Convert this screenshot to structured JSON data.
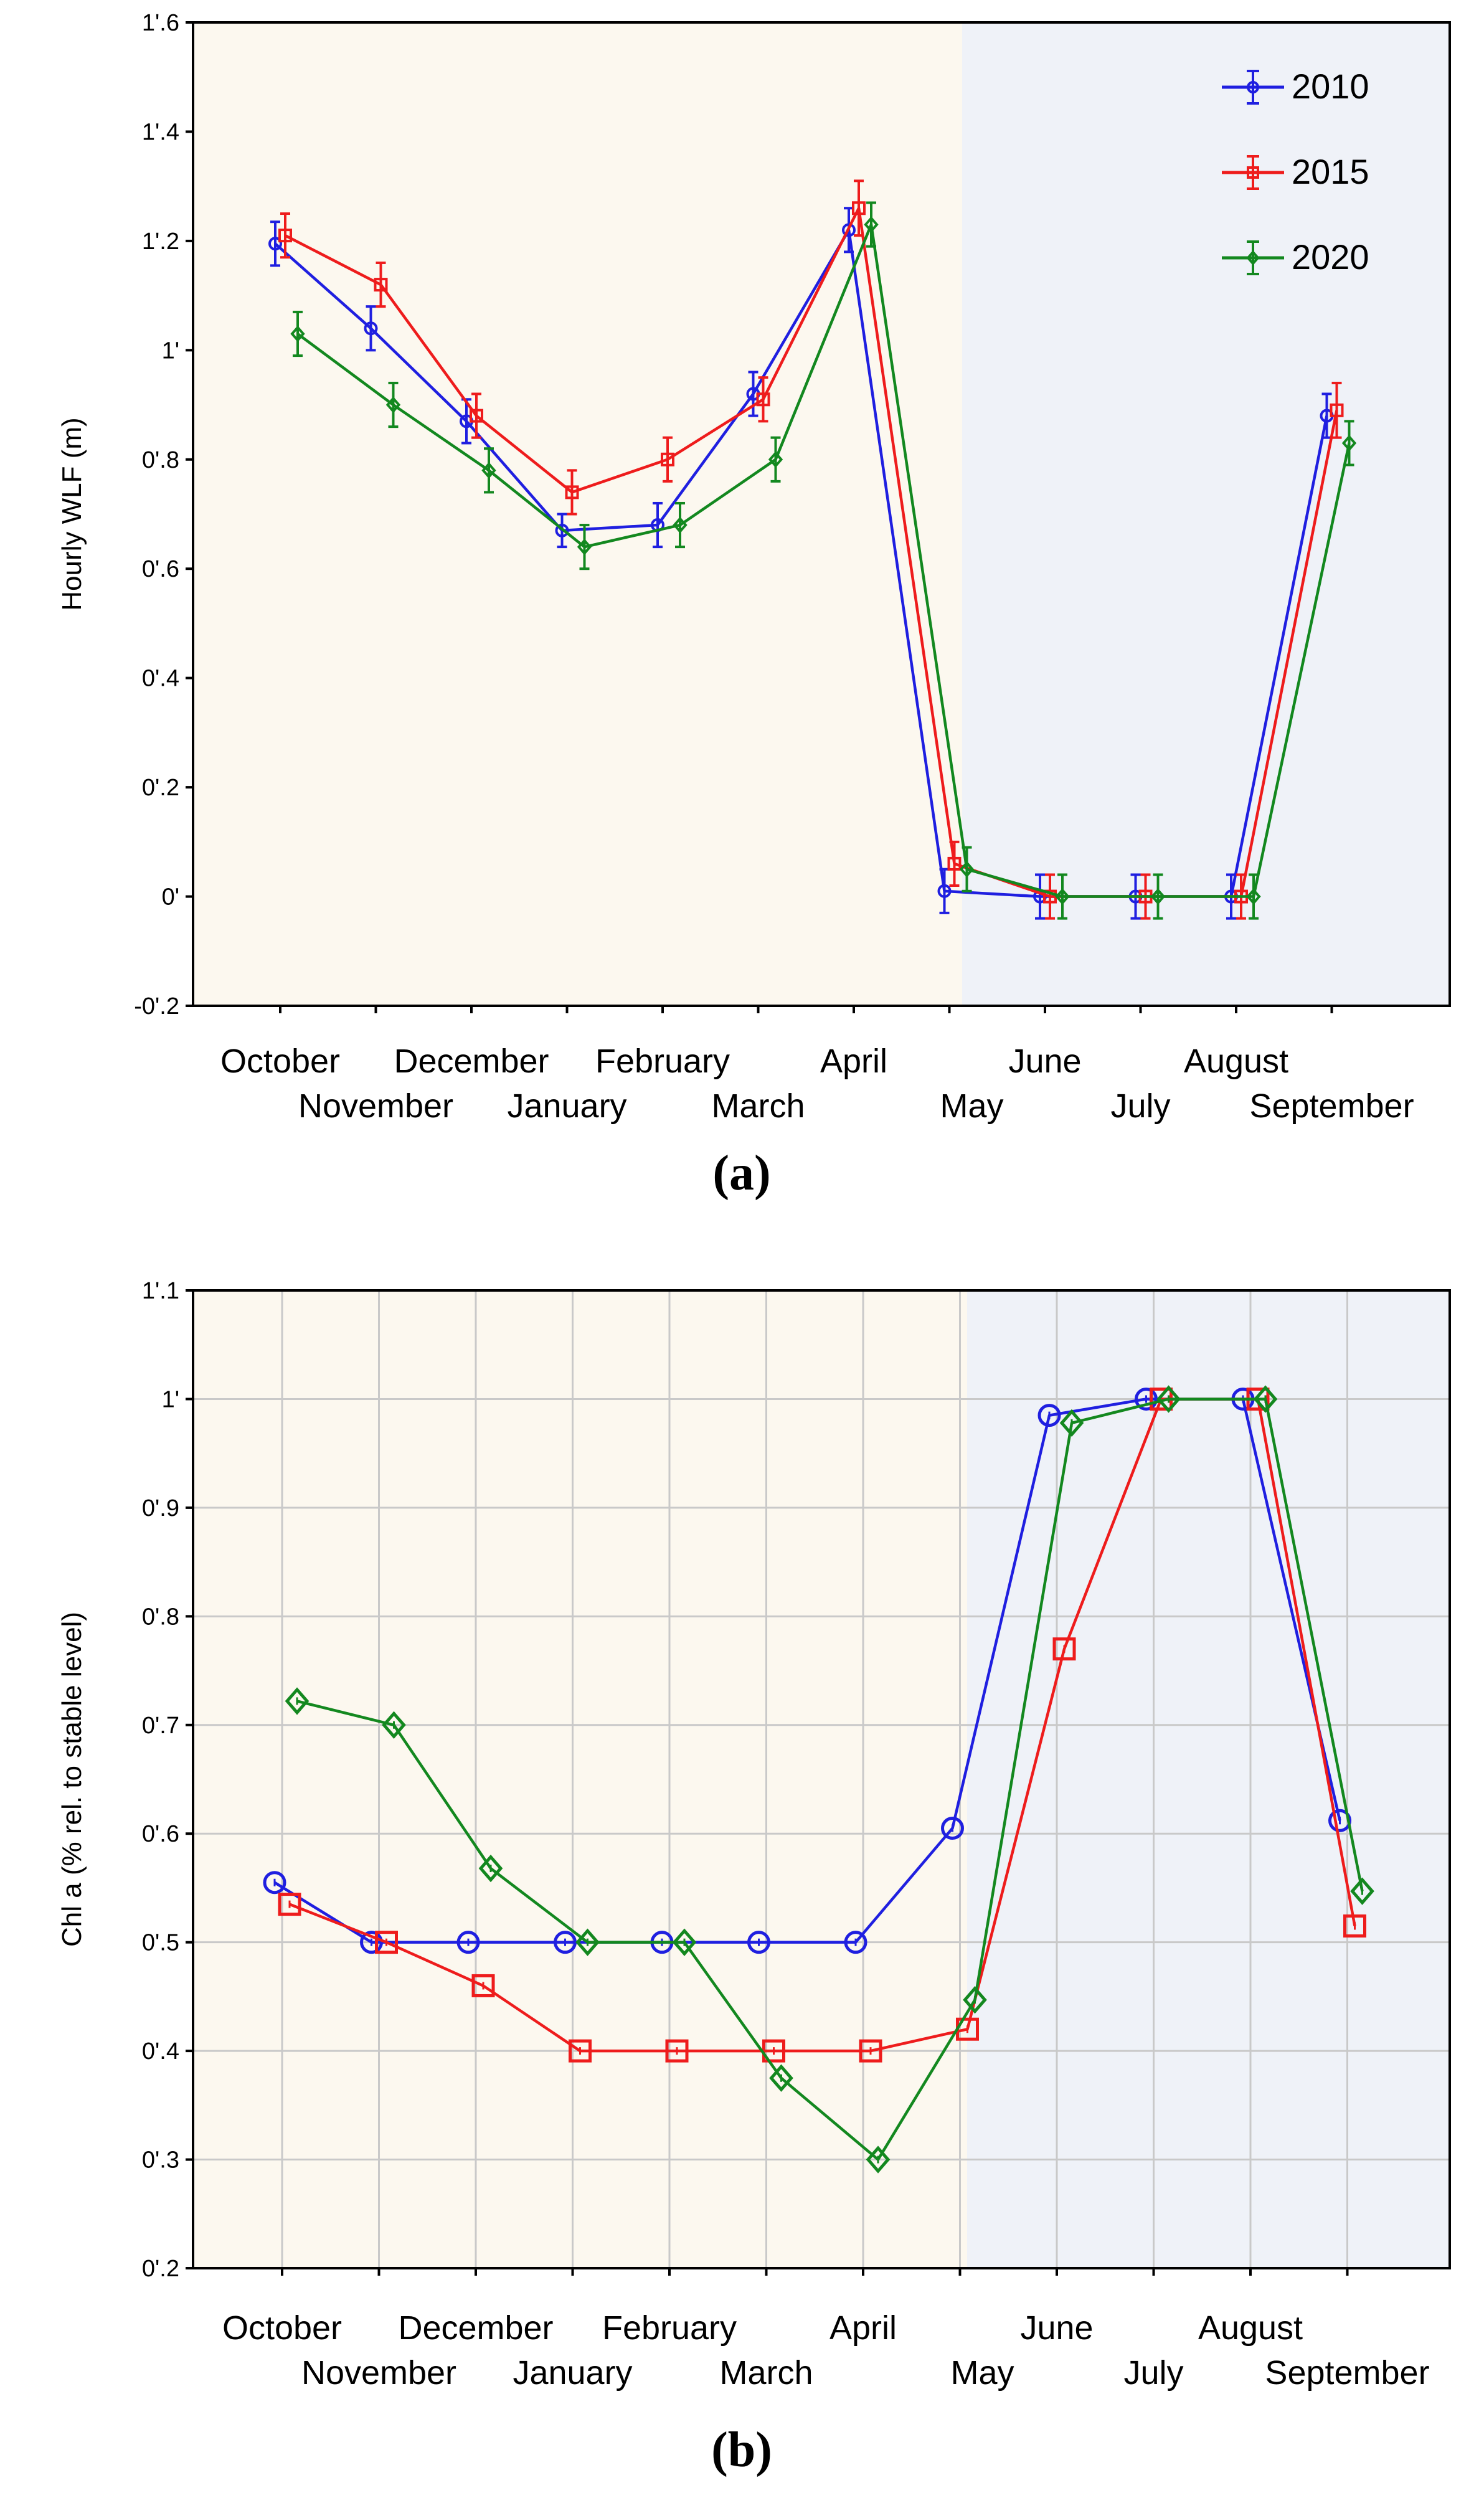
{
  "colors": {
    "series_2010": "#1f1fe0",
    "series_2015": "#ee1c1c",
    "series_2020": "#13881f",
    "bg_left": "#fcf8ef",
    "bg_right": "#eff2f8",
    "grid": "#c9c9c9",
    "axis": "#000000"
  },
  "chart_data": [
    {
      "id": "a",
      "type": "line",
      "panel_label": "(a)",
      "title": "",
      "xlabel": "",
      "ylabel": "Hourly WLF (m)",
      "ylim": [
        -0.2,
        1.6
      ],
      "yticks": [
        -0.2,
        0,
        0.2,
        0.4,
        0.6,
        0.8,
        1.0,
        1.2,
        1.4,
        1.6
      ],
      "ytick_labels": [
        "-0'.2",
        "0'",
        "0'.2",
        "0'.4",
        "0'.6",
        "0'.8",
        "1'",
        "1'.2",
        "1'.4",
        "1'.6"
      ],
      "categories": [
        "October",
        "November",
        "December",
        "January",
        "February",
        "March",
        "April",
        "May",
        "June",
        "July",
        "August",
        "September"
      ],
      "grid": false,
      "error_bars": true,
      "legend": {
        "position": "top-right",
        "entries": [
          "2010",
          "2015",
          "2020"
        ]
      },
      "series": [
        {
          "name": "2010",
          "marker": "circle",
          "values": [
            1.195,
            1.04,
            0.87,
            0.67,
            0.68,
            0.92,
            1.22,
            0.01,
            0.0,
            0.0,
            0.0,
            0.88
          ],
          "errors": [
            0.04,
            0.04,
            0.04,
            0.03,
            0.04,
            0.04,
            0.04,
            0.04,
            0.04,
            0.04,
            0.04,
            0.04
          ]
        },
        {
          "name": "2015",
          "marker": "square",
          "values": [
            1.21,
            1.12,
            0.88,
            0.74,
            0.8,
            0.91,
            1.26,
            0.06,
            0.0,
            0.0,
            0.0,
            0.89
          ],
          "errors": [
            0.04,
            0.04,
            0.04,
            0.04,
            0.04,
            0.04,
            0.05,
            0.04,
            0.04,
            0.04,
            0.04,
            0.05
          ]
        },
        {
          "name": "2020",
          "marker": "diamond",
          "values": [
            1.03,
            0.9,
            0.78,
            0.64,
            0.68,
            0.8,
            1.23,
            0.05,
            0.0,
            0.0,
            0.0,
            0.83
          ],
          "errors": [
            0.04,
            0.04,
            0.04,
            0.04,
            0.04,
            0.04,
            0.04,
            0.04,
            0.04,
            0.04,
            0.04,
            0.04
          ]
        }
      ]
    },
    {
      "id": "b",
      "type": "line",
      "panel_label": "(b)",
      "title": "",
      "xlabel": "",
      "ylabel": "Chl a (% rel. to stable level)",
      "ylim": [
        0.2,
        1.1
      ],
      "yticks": [
        0.2,
        0.3,
        0.4,
        0.5,
        0.6,
        0.7,
        0.8,
        0.9,
        1.0,
        1.1
      ],
      "ytick_labels": [
        "0'.2",
        "0'.3",
        "0'.4",
        "0'.5",
        "0'.6",
        "0'.7",
        "0'.8",
        "0'.9",
        "1'",
        "1'.1"
      ],
      "categories": [
        "October",
        "November",
        "December",
        "January",
        "February",
        "March",
        "April",
        "May",
        "June",
        "July",
        "August",
        "September"
      ],
      "grid": true,
      "error_bars": false,
      "series": [
        {
          "name": "2010",
          "marker": "circle",
          "values": [
            0.555,
            0.5,
            0.5,
            0.5,
            0.5,
            0.5,
            0.5,
            0.605,
            0.985,
            1.0,
            1.0,
            0.612
          ]
        },
        {
          "name": "2015",
          "marker": "square",
          "values": [
            0.535,
            0.5,
            0.46,
            0.4,
            0.4,
            0.4,
            0.4,
            0.42,
            0.77,
            1.0,
            1.0,
            0.515
          ]
        },
        {
          "name": "2020",
          "marker": "diamond",
          "values": [
            0.722,
            0.7,
            0.568,
            0.5,
            0.5,
            0.375,
            0.3,
            0.447,
            0.978,
            1.0,
            1.0,
            0.547
          ]
        }
      ]
    }
  ]
}
